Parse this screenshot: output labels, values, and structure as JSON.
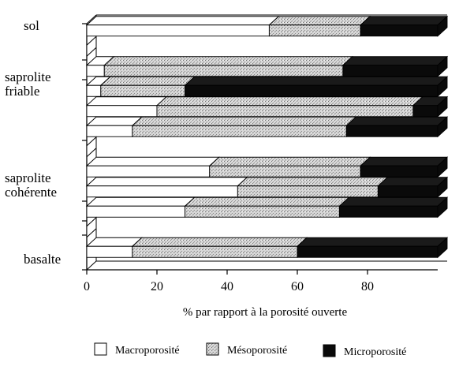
{
  "chart_data": {
    "type": "bar",
    "orientation": "horizontal",
    "stacked": true,
    "three_d": true,
    "xlabel": "% par rapport à la porosité ouverte",
    "xlim": [
      0,
      100
    ],
    "xticks": [
      0,
      20,
      40,
      60,
      80
    ],
    "category_labels": [
      {
        "text": [
          "sol"
        ]
      },
      {
        "text": [
          "saprolite",
          "friable"
        ]
      },
      {
        "text": [
          "saprolite",
          "cohérente"
        ]
      },
      {
        "text": [
          "basalte"
        ]
      }
    ],
    "rows": [
      {
        "values": [
          52,
          26,
          22
        ]
      },
      {
        "values": [
          0,
          0,
          0
        ]
      },
      {
        "values": [
          5,
          68,
          27
        ]
      },
      {
        "values": [
          4,
          24,
          72
        ]
      },
      {
        "values": [
          20,
          73,
          7
        ]
      },
      {
        "values": [
          13,
          61,
          26
        ]
      },
      {
        "values": [
          0,
          0,
          0
        ]
      },
      {
        "values": [
          35,
          43,
          22
        ]
      },
      {
        "values": [
          43,
          40,
          17
        ]
      },
      {
        "values": [
          28,
          44,
          28
        ]
      },
      {
        "values": [
          0,
          0,
          0
        ]
      },
      {
        "values": [
          13,
          47,
          40
        ]
      }
    ],
    "series": [
      {
        "name": "Macroporosité",
        "color": "#ffffff",
        "fill": "white"
      },
      {
        "name": "Mésoporosité",
        "color": "#c8c8c8",
        "fill": "stippled grey"
      },
      {
        "name": "Microporosité",
        "color": "#0a0a0a",
        "fill": "black"
      }
    ],
    "legend_position": "bottom"
  }
}
